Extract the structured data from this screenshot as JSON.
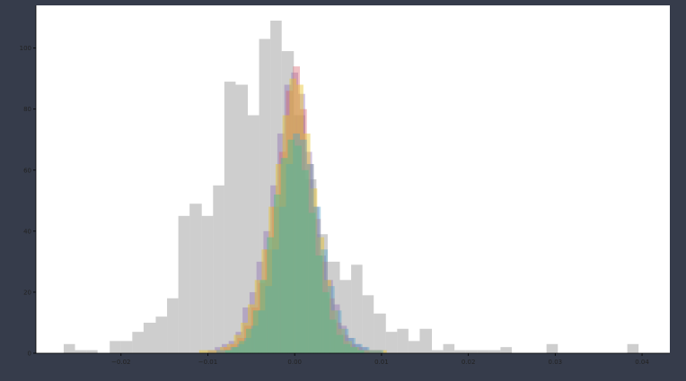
{
  "colors": {
    "page_background": "#363c4b",
    "plot_background": "#ffffff",
    "axis": "#000000"
  },
  "chart_data": {
    "type": "histogram",
    "title": "",
    "xlabel": "",
    "ylabel": "",
    "xlim": [
      -0.0298,
      0.0432
    ],
    "ylim": [
      0,
      114
    ],
    "grid": false,
    "legend": "none",
    "x_ticks": [
      {
        "value": -0.02,
        "label": "−0.02"
      },
      {
        "value": -0.01,
        "label": "−0.01"
      },
      {
        "value": 0.0,
        "label": "0.00"
      },
      {
        "value": 0.01,
        "label": "0.01"
      },
      {
        "value": 0.02,
        "label": "0.02"
      },
      {
        "value": 0.03,
        "label": "0.03"
      },
      {
        "value": 0.04,
        "label": "0.04"
      }
    ],
    "y_ticks": [
      {
        "value": 0,
        "label": "0"
      },
      {
        "value": 20,
        "label": "20"
      },
      {
        "value": 40,
        "label": "40"
      },
      {
        "value": 60,
        "label": "60"
      },
      {
        "value": 80,
        "label": "80"
      },
      {
        "value": 100,
        "label": "100"
      }
    ],
    "series": [
      {
        "color": "#9e9e9e",
        "opacity": 0.5,
        "bin_edges": [
          -0.0266,
          -0.0253,
          -0.024,
          -0.0227,
          -0.0213,
          -0.02,
          -0.0187,
          -0.0174,
          -0.016,
          -0.0147,
          -0.0134,
          -0.0121,
          -0.0107,
          -0.0094,
          -0.0081,
          -0.0068,
          -0.0054,
          -0.0041,
          -0.0028,
          -0.0015,
          -0.0001,
          0.0012,
          0.0025,
          0.0038,
          0.0052,
          0.0065,
          0.0078,
          0.0091,
          0.0105,
          0.0118,
          0.0131,
          0.0144,
          0.0158,
          0.0171,
          0.0184,
          0.0197,
          0.021,
          0.0224,
          0.0237,
          0.025,
          0.0263,
          0.0277,
          0.029,
          0.0303,
          0.0316,
          0.033,
          0.0343,
          0.0356,
          0.0369,
          0.0383,
          0.0396
        ],
        "counts": [
          3,
          1,
          1,
          0,
          4,
          4,
          7,
          10,
          12,
          18,
          45,
          49,
          45,
          55,
          89,
          88,
          78,
          103,
          109,
          99,
          78,
          57,
          39,
          30,
          24,
          29,
          19,
          13,
          7,
          8,
          4,
          8,
          1,
          3,
          1,
          1,
          1,
          1,
          2,
          0,
          0,
          0,
          3,
          0,
          0,
          0,
          0,
          0,
          0,
          3
        ]
      },
      {
        "color": "#8c6bb1",
        "opacity": 0.4,
        "bin_edges": [
          -0.01,
          -0.0092,
          -0.0084,
          -0.0076,
          -0.0068,
          -0.006,
          -0.0052,
          -0.0044,
          -0.0036,
          -0.0028,
          -0.002,
          -0.0012,
          -0.0004,
          0.0004,
          0.0012,
          0.002,
          0.0028,
          0.0036,
          0.0044,
          0.0052,
          0.006,
          0.0068,
          0.0076,
          0.0084,
          0.0092,
          0.01
        ],
        "counts": [
          1,
          2,
          3,
          4,
          7,
          15,
          20,
          30,
          40,
          55,
          72,
          88,
          92,
          85,
          66,
          48,
          32,
          24,
          16,
          9,
          5,
          3,
          2,
          1,
          1
        ]
      },
      {
        "color": "#d6616b",
        "opacity": 0.4,
        "bin_edges": [
          -0.009,
          -0.0082,
          -0.0074,
          -0.0066,
          -0.0058,
          -0.005,
          -0.0042,
          -0.0034,
          -0.0026,
          -0.0018,
          -0.001,
          -0.0002,
          0.0006,
          0.0014,
          0.0022,
          0.003,
          0.0038,
          0.0046,
          0.0054,
          0.0062,
          0.007,
          0.0078,
          0.0086
        ],
        "counts": [
          1,
          2,
          3,
          5,
          9,
          15,
          23,
          34,
          48,
          66,
          86,
          94,
          80,
          62,
          44,
          30,
          18,
          10,
          6,
          3,
          2,
          1
        ]
      },
      {
        "color": "#e6c229",
        "opacity": 0.45,
        "bin_edges": [
          -0.011,
          -0.0102,
          -0.0094,
          -0.0086,
          -0.0078,
          -0.007,
          -0.0062,
          -0.0054,
          -0.0046,
          -0.0038,
          -0.003,
          -0.0022,
          -0.0014,
          -0.0006,
          0.0002,
          0.001,
          0.0018,
          0.0026,
          0.0034,
          0.0042,
          0.005,
          0.0058,
          0.0066,
          0.0074,
          0.0082,
          0.009,
          0.0098,
          0.0106
        ],
        "counts": [
          1,
          1,
          1,
          2,
          3,
          6,
          10,
          16,
          24,
          34,
          48,
          62,
          78,
          90,
          88,
          72,
          54,
          38,
          24,
          14,
          8,
          4,
          2,
          1,
          1,
          1,
          1
        ]
      },
      {
        "color": "#4aa3c8",
        "opacity": 0.4,
        "bin_edges": [
          -0.009,
          -0.0082,
          -0.0074,
          -0.0066,
          -0.0058,
          -0.005,
          -0.0042,
          -0.0034,
          -0.0026,
          -0.0018,
          -0.001,
          -0.0002,
          0.0006,
          0.0014,
          0.0022,
          0.003,
          0.0038,
          0.0046,
          0.0054,
          0.0062,
          0.007,
          0.0078,
          0.0086,
          0.0094,
          0.0102
        ],
        "counts": [
          1,
          1,
          2,
          3,
          5,
          9,
          14,
          22,
          34,
          48,
          62,
          72,
          70,
          62,
          48,
          34,
          22,
          14,
          8,
          5,
          3,
          2,
          1,
          1
        ]
      },
      {
        "color": "#5fb88a",
        "opacity": 0.55,
        "bin_edges": [
          -0.008,
          -0.0072,
          -0.0064,
          -0.0056,
          -0.0048,
          -0.004,
          -0.0032,
          -0.0024,
          -0.0016,
          -0.0008,
          0.0,
          0.0008,
          0.0016,
          0.0024,
          0.0032,
          0.004,
          0.0048,
          0.0056,
          0.0064,
          0.0072,
          0.008
        ],
        "counts": [
          1,
          2,
          4,
          8,
          14,
          24,
          38,
          52,
          64,
          70,
          68,
          60,
          46,
          32,
          20,
          11,
          6,
          3,
          2,
          1
        ]
      }
    ]
  }
}
